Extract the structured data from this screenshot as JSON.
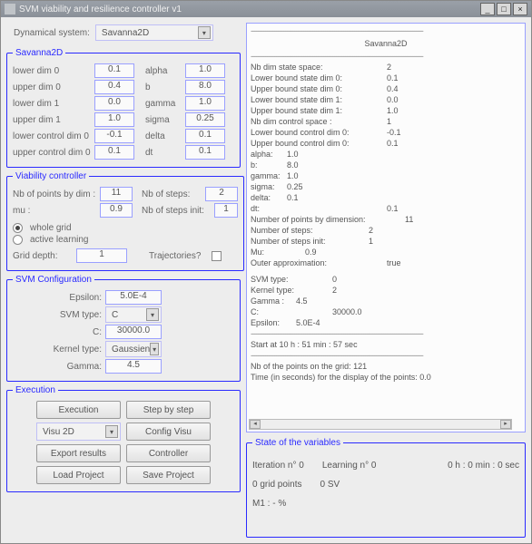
{
  "window": {
    "title": "SVM viability and resilience controller v1"
  },
  "top": {
    "dynsys_label": "Dynamical system:",
    "dynsys_value": "Savanna2D"
  },
  "savanna": {
    "legend": "Savanna2D",
    "rows": [
      {
        "l1": "lower dim 0",
        "v1": "0.1",
        "l2": "alpha",
        "v2": "1.0"
      },
      {
        "l1": "upper dim 0",
        "v1": "0.4",
        "l2": "b",
        "v2": "8.0"
      },
      {
        "l1": "lower dim 1",
        "v1": "0.0",
        "l2": "gamma",
        "v2": "1.0"
      },
      {
        "l1": "upper dim 1",
        "v1": "1.0",
        "l2": "sigma",
        "v2": "0.25"
      },
      {
        "l1": "lower control dim 0",
        "v1": "-0.1",
        "l2": "delta",
        "v2": "0.1"
      },
      {
        "l1": "upper control dim 0",
        "v1": "0.1",
        "l2": "dt",
        "v2": "0.1"
      }
    ]
  },
  "viability": {
    "legend": "Viability controller",
    "nbpts_label": "Nb of points by dim :",
    "nbpts": "11",
    "nbsteps_label": "Nb of steps:",
    "nbsteps": "2",
    "mu_label": "mu :",
    "mu": "0.9",
    "nbstepsinit_label": "Nb of steps init:",
    "nbstepsinit": "1",
    "whole_grid": "whole grid",
    "active_learning": "active learning",
    "griddepth_label": "Grid depth:",
    "griddepth": "1",
    "trajectories_label": "Trajectories?"
  },
  "svm": {
    "legend": "SVM Configuration",
    "epsilon_label": "Epsilon:",
    "epsilon": "5.0E-4",
    "svmtype_label": "SVM type:",
    "svmtype": "C",
    "c_label": "C:",
    "c": "30000.0",
    "kernel_label": "Kernel type:",
    "kernel": "Gaussien",
    "gamma_label": "Gamma:",
    "gamma": "4.5"
  },
  "exec": {
    "legend": "Execution",
    "buttons": {
      "execution": "Execution",
      "stepbystep": "Step by step",
      "visu2d": "Visu 2D",
      "configvisu": "Config Visu",
      "export": "Export results",
      "controller": "Controller",
      "load": "Load Project",
      "save": "Save Project"
    }
  },
  "log": {
    "title": "Savanna2D",
    "lines": [
      {
        "k": "Nb dim state space:",
        "v": "2"
      },
      {
        "k": "Lower bound state dim 0:",
        "v": "0.1"
      },
      {
        "k": "Upper bound state dim 0:",
        "v": "0.4"
      },
      {
        "k": "Lower bound state dim 1:",
        "v": "0.0"
      },
      {
        "k": "Upper bound state dim 1:",
        "v": "1.0"
      },
      {
        "k": "Nb dim control space :",
        "v": "1"
      },
      {
        "k": "Lower bound control dim 0:",
        "v": "-0.1"
      },
      {
        "k": "Upper bound control dim 0:",
        "v": "0.1"
      },
      {
        "k": "alpha:",
        "v": "1.0",
        "kw": "40"
      },
      {
        "k": "b:",
        "v": "8.0",
        "kw": "40"
      },
      {
        "k": "gamma:",
        "v": "1.0",
        "kw": "40"
      },
      {
        "k": "sigma:",
        "v": "0.25",
        "kw": "40"
      },
      {
        "k": "delta:",
        "v": "0.1",
        "kw": "40"
      },
      {
        "k": "dt:",
        "v": "0.1"
      },
      {
        "k": "Number of points by dimension:",
        "v": "11",
        "kw": "170"
      },
      {
        "k": "Number of steps:",
        "v": "2",
        "kw": "130"
      },
      {
        "k": "Number of steps init:",
        "v": "1",
        "kw": "130"
      },
      {
        "k": "Mu:",
        "v": "0.9",
        "kw": "60"
      },
      {
        "k": "Outer approximation:",
        "v": "true"
      }
    ],
    "svmblock": [
      {
        "k": "SVM type:",
        "v": "0",
        "kw": "90"
      },
      {
        "k": "Kernel type:",
        "v": "2",
        "kw": "90"
      },
      {
        "k": "Gamma :",
        "v": "4.5",
        "kw": "50"
      },
      {
        "k": "C:",
        "v": "30000.0",
        "kw": "90"
      },
      {
        "k": "Epsilon:",
        "v": "5.0E-4",
        "kw": "50"
      }
    ],
    "start": "Start at 10 h : 51 min : 57 sec",
    "footer1": "Nb of the points on the grid: 121",
    "footer2": "Time (in seconds) for the display of the points: 0.0"
  },
  "state": {
    "legend": "State of the variables",
    "iter_label": "Iteration n°",
    "iter": "0",
    "learn_label": "Learning n°",
    "learn": "0",
    "time": "0 h : 0 min : 0 sec",
    "gridpts": "0 grid points",
    "sv": "0 SV",
    "m1": "M1 : - %"
  }
}
